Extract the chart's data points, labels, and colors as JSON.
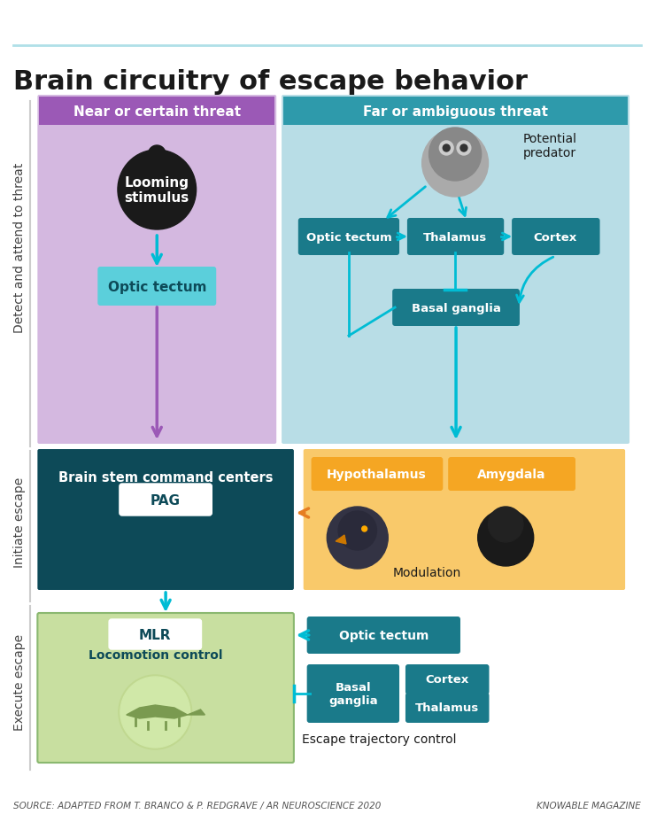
{
  "title": "Brain circuitry of escape behavior",
  "subtitle_line_color": "#b0e0e8",
  "background_color": "#ffffff",
  "source_text": "SOURCE: ADAPTED FROM T. BRANCO & P. REDGRAVE / AR NEUROSCIENCE 2020",
  "credit_text": "KNOWABLE MAGAZINE",
  "colors": {
    "purple_header": "#9b59b6",
    "purple_light_bg": "#d4b8e0",
    "teal_header": "#2e9aab",
    "teal_light_bg": "#b8dde6",
    "teal_box": "#2dbdcc",
    "teal_box_light": "#5bcfdb",
    "teal_dark_box": "#1a7a8a",
    "dark_teal_box": "#1b6070",
    "very_dark_teal": "#0d4a58",
    "orange_bg": "#f5a623",
    "orange_light_bg": "#f9c96a",
    "green_light_bg": "#d4e8c2",
    "green_box_border": "#8ab870",
    "arrow_cyan": "#00bcd4",
    "arrow_purple": "#9b59b6",
    "arrow_orange": "#e67e22",
    "arrow_gray": "#555555",
    "white": "#ffffff",
    "black": "#1a1a1a",
    "text_dark": "#1a1a1a",
    "text_white": "#ffffff",
    "text_teal_dark": "#0d4a58"
  },
  "section_labels": [
    "Detect and attend to threat",
    "Initiate escape",
    "Execute escape"
  ]
}
